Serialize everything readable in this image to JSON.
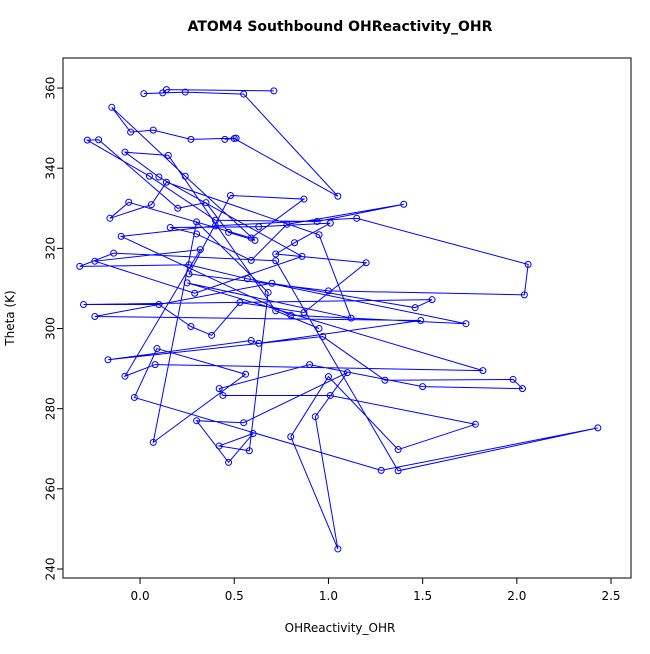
{
  "chart_data": {
    "type": "line",
    "title": "ATOM4 Southbound OHReactivity_OHR",
    "x_label": "OHReactivity_OHR",
    "y_label": "Theta (K)",
    "color": "#0000ff",
    "x": [
      0.71,
      0.14,
      0.12,
      0.02,
      0.24,
      0.55,
      1.05,
      0.5,
      0.45,
      0.51,
      0.27,
      0.07,
      -0.05,
      -0.15,
      0.24,
      0.61,
      0.47,
      0.35,
      0.2,
      -0.22,
      -0.28,
      0.05,
      0.4,
      0.94,
      1.4,
      0.78,
      0.59,
      0.3,
      0.16,
      0.63,
      1.01,
      0.82,
      0.72,
      1.2,
      0.87,
      0.53,
      0.38,
      0.27,
      0.1,
      -0.3,
      1.55,
      1.46,
      0.7,
      -0.24,
      1.49,
      0.63,
      0.59,
      -0.17,
      0.97,
      1.3,
      1.98,
      2.03,
      1.5,
      0.9,
      0.42,
      0.44,
      1.01,
      1.78,
      1.37,
      1.0,
      0.8,
      1.05,
      0.93,
      1.1,
      0.55,
      0.3,
      0.47,
      0.6,
      0.42,
      0.58,
      0.68,
      0.3,
      0.07,
      0.56,
      0.09,
      -0.03,
      1.28,
      2.43,
      1.37,
      0.72,
      -0.14,
      -0.32,
      0.26,
      0.57,
      1.73,
      0.8,
      -0.1,
      0.4,
      1.15,
      2.06,
      2.04,
      1.0,
      0.26,
      0.48,
      0.87,
      0.59,
      -0.06,
      -0.16,
      0.06,
      0.14,
      0.95,
      1.12,
      0.25,
      1.82,
      0.08,
      -0.08,
      0.32,
      -0.24,
      0.29,
      0.86,
      0.1,
      -0.08,
      0.15,
      0.72,
      0.95
    ],
    "values": [
      359.3,
      359.6,
      358.8,
      358.6,
      359.0,
      358.5,
      333,
      347.4,
      347.2,
      347.5,
      347.2,
      349.5,
      349,
      355.2,
      338,
      322,
      324,
      331.4,
      330,
      347.1,
      347,
      338,
      327,
      326.7,
      331,
      326,
      317,
      323.6,
      325.2,
      325.4,
      326.3,
      321.4,
      318.6,
      316.4,
      304,
      306.5,
      298.3,
      300.5,
      306,
      306,
      307.2,
      305.2,
      311.3,
      303,
      302,
      296.3,
      297,
      292.2,
      298,
      287.1,
      287.3,
      285,
      285.5,
      291,
      285,
      283.3,
      283.3,
      276.1,
      269.8,
      288,
      273,
      245,
      278,
      289,
      276.5,
      277,
      266.6,
      273.8,
      270.7,
      269.5,
      309,
      326.6,
      271.6,
      288.6,
      295,
      282.8,
      264.6,
      275.2,
      264.5,
      316.9,
      318.8,
      315.5,
      315.9,
      312.4,
      301.2,
      303.3,
      323,
      325.6,
      327.5,
      316,
      308.4,
      309.4,
      313.6,
      333.2,
      332.3,
      322.6,
      331.5,
      327.5,
      330.9,
      336.5,
      323.4,
      302.6,
      311.4,
      289.5,
      291,
      288.1,
      319.7,
      316.8,
      308.8,
      318,
      337.8,
      344,
      343.2,
      304.4,
      300
    ],
    "xlim": [
      -0.409,
      2.606
    ],
    "ylim": [
      237.75,
      367.5
    ],
    "xticks": [
      {
        "value": 0,
        "label": "0.0"
      },
      0.5,
      {
        "value": 1,
        "label": "1.0"
      },
      1.5,
      {
        "value": 2,
        "label": "2.0"
      },
      2.5
    ],
    "yticks": [
      240,
      260,
      280,
      300,
      320,
      340,
      360
    ]
  }
}
